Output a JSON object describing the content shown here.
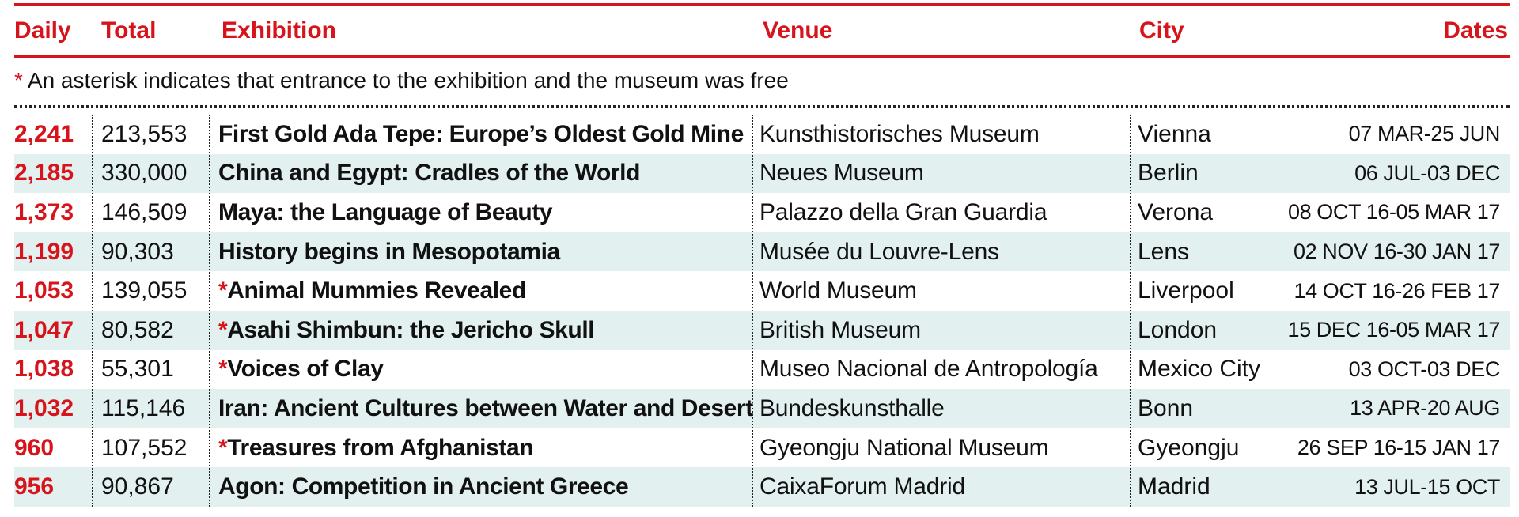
{
  "headers": {
    "daily": "Daily",
    "total": "Total",
    "exhibition": "Exhibition",
    "venue": "Venue",
    "city": "City",
    "dates": "Dates"
  },
  "note": {
    "asterisk": "*",
    "text": "An asterisk indicates that entrance to the exhibition and the museum was free"
  },
  "colors": {
    "accent": "#d7141c",
    "row_alt": "#e2f0f0"
  },
  "rows": [
    {
      "daily": "2,241",
      "total": "213,553",
      "star": "",
      "exhibition": "First Gold Ada Tepe: Europe’s Oldest Gold Mine",
      "venue": "Kunsthistorisches Museum",
      "city": "Vienna",
      "dates": "07 MAR-25 JUN"
    },
    {
      "daily": "2,185",
      "total": "330,000",
      "star": "",
      "exhibition": "China and Egypt: Cradles of the World",
      "venue": "Neues Museum",
      "city": "Berlin",
      "dates": "06 JUL-03 DEC"
    },
    {
      "daily": "1,373",
      "total": "146,509",
      "star": "",
      "exhibition": "Maya: the Language of Beauty",
      "venue": "Palazzo della Gran Guardia",
      "city": "Verona",
      "dates": "08 OCT 16-05 MAR 17"
    },
    {
      "daily": "1,199",
      "total": "90,303",
      "star": "",
      "exhibition": "History begins in Mesopotamia",
      "venue": "Musée du Louvre-Lens",
      "city": "Lens",
      "dates": "02 NOV 16-30 JAN 17"
    },
    {
      "daily": "1,053",
      "total": "139,055",
      "star": "*",
      "exhibition": "Animal Mummies Revealed",
      "venue": "World Museum",
      "city": "Liverpool",
      "dates": "14 OCT 16-26 FEB 17"
    },
    {
      "daily": "1,047",
      "total": "80,582",
      "star": "*",
      "exhibition": "Asahi Shimbun: the Jericho Skull",
      "venue": "British Museum",
      "city": "London",
      "dates": "15 DEC 16-05 MAR 17"
    },
    {
      "daily": "1,038",
      "total": "55,301",
      "star": "*",
      "exhibition": "Voices of Clay",
      "venue": "Museo Nacional de Antropología",
      "city": "Mexico City",
      "dates": "03 OCT-03 DEC"
    },
    {
      "daily": "1,032",
      "total": "115,146",
      "star": "",
      "exhibition": "Iran: Ancient Cultures between Water and Desert",
      "venue": "Bundeskunsthalle",
      "city": "Bonn",
      "dates": "13 APR-20 AUG"
    },
    {
      "daily": "960",
      "total": "107,552",
      "star": "*",
      "exhibition": "Treasures from Afghanistan",
      "venue": "Gyeongju National Museum",
      "city": "Gyeongju",
      "dates": "26 SEP 16-15 JAN 17"
    },
    {
      "daily": "956",
      "total": "90,867",
      "star": "",
      "exhibition": "Agon: Competition in Ancient Greece",
      "venue": "CaixaForum Madrid",
      "city": "Madrid",
      "dates": "13 JUL-15 OCT"
    }
  ]
}
